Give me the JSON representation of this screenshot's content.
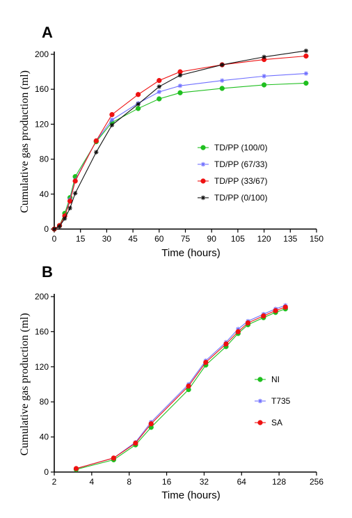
{
  "chart_data": [
    {
      "panel": "A",
      "type": "line",
      "xscale": "linear",
      "xlabel": "Time (hours)",
      "ylabel": "Cumulative gas production (ml)",
      "xlim": [
        0,
        150
      ],
      "ylim": [
        0,
        200
      ],
      "xticks": [
        0,
        15,
        30,
        45,
        60,
        75,
        90,
        105,
        120,
        135,
        150
      ],
      "yticks": [
        0,
        40,
        80,
        120,
        160,
        200
      ],
      "legend_position": "center-right",
      "series": [
        {
          "name": "TD/PP (100/0)",
          "color": "#1fbf1f",
          "marker": "circle",
          "x": [
            0,
            3,
            6,
            9,
            12,
            24,
            33,
            48,
            60,
            72,
            96,
            120,
            144
          ],
          "y": [
            0,
            4,
            18,
            36,
            60,
            100,
            122,
            138,
            149,
            156,
            161,
            165,
            167
          ]
        },
        {
          "name": "TD/PP (67/33)",
          "color": "#6f6fff",
          "marker": "asterisk",
          "x": [
            0,
            3,
            6,
            9,
            12,
            24,
            33,
            48,
            60,
            72,
            96,
            120,
            144
          ],
          "y": [
            0,
            4,
            15,
            34,
            56,
            101,
            125,
            144,
            157,
            164,
            170,
            175,
            178
          ]
        },
        {
          "name": "TD/PP (33/67)",
          "color": "#ee1111",
          "marker": "circle",
          "x": [
            0,
            3,
            6,
            9,
            12,
            24,
            33,
            48,
            60,
            72,
            96,
            120,
            144
          ],
          "y": [
            0,
            4,
            15,
            32,
            55,
            101,
            131,
            154,
            170,
            180,
            188,
            194,
            198
          ]
        },
        {
          "name": "TD/PP (0/100)",
          "color": "#111111",
          "marker": "asterisk",
          "x": [
            0,
            3,
            6,
            9,
            12,
            24,
            33,
            48,
            60,
            72,
            96,
            120,
            144
          ],
          "y": [
            0,
            3,
            12,
            24,
            41,
            88,
            119,
            143,
            163,
            176,
            188,
            197,
            204
          ]
        }
      ]
    },
    {
      "panel": "B",
      "type": "line",
      "xscale": "log2",
      "xlabel": "Time (hours)",
      "ylabel": "Cumulative gas production (ml)",
      "xlim": [
        2,
        256
      ],
      "ylim": [
        0,
        200
      ],
      "xticks": [
        2,
        4,
        8,
        16,
        32,
        64,
        128,
        256
      ],
      "yticks": [
        0,
        40,
        80,
        120,
        160,
        200
      ],
      "legend_position": "center-right",
      "series": [
        {
          "name": "NI",
          "color": "#1fbf1f",
          "marker": "circle",
          "x": [
            3,
            6,
            9,
            12,
            24,
            33,
            48,
            60,
            72,
            96,
            120,
            144
          ],
          "y": [
            3,
            14,
            31,
            51,
            94,
            122,
            143,
            158,
            168,
            176,
            182,
            186
          ]
        },
        {
          "name": "T735",
          "color": "#6f6fff",
          "marker": "asterisk",
          "x": [
            3,
            6,
            9,
            12,
            24,
            33,
            48,
            60,
            72,
            96,
            120,
            144
          ],
          "y": [
            4,
            16,
            34,
            57,
            100,
            127,
            148,
            163,
            172,
            180,
            186,
            190
          ]
        },
        {
          "name": "SA",
          "color": "#ee1111",
          "marker": "circle",
          "x": [
            3,
            6,
            9,
            12,
            24,
            33,
            48,
            60,
            72,
            96,
            120,
            144
          ],
          "y": [
            4,
            16,
            33,
            55,
            98,
            125,
            146,
            160,
            170,
            178,
            184,
            188
          ]
        }
      ]
    }
  ]
}
